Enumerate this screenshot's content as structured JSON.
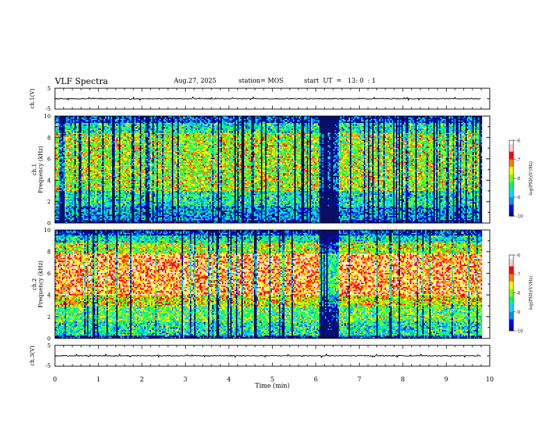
{
  "header": {
    "title": "VLF Spectra",
    "date": "Aug.27, 2025",
    "station": "station= MOS",
    "start": "start  UT  =   13: 0  : 1"
  },
  "colormap": [
    "#0a0f66",
    "#0000ff",
    "#0090ff",
    "#00e0ff",
    "#00ff66",
    "#80ff00",
    "#ffff00",
    "#ff8000",
    "#ff0000",
    "#ffd0d0",
    "#ffffff"
  ],
  "chart_data": [
    {
      "id": "ch1-voltage",
      "type": "line",
      "ylabel": "ch.1(V)",
      "yticks": [
        "5",
        "-5"
      ],
      "ylim": [
        -5,
        5
      ],
      "xlim": [
        0,
        10
      ],
      "level": 0,
      "extent_x": 9.8
    },
    {
      "id": "ch1-spectrogram",
      "type": "heatmap",
      "ylabel": "ch.1\nFrequency (kHz)",
      "ylabel_lines": [
        "ch.1",
        "Frequency (kHz)"
      ],
      "yticks": [
        "0",
        "2",
        "4",
        "6",
        "8",
        "10"
      ],
      "ylim": [
        0,
        10
      ],
      "xlim": [
        0,
        10
      ],
      "extent_x": 9.8,
      "colorbar": {
        "label": "log(PSD)(V²/Hz)",
        "ticks": [
          "-6",
          "-7",
          "-8",
          "-9",
          "-10"
        ],
        "range": [
          -10,
          -6
        ]
      },
      "profile_bands_khz": [
        [
          0.0,
          0.3,
          -9.8
        ],
        [
          0.3,
          1.6,
          -9.1
        ],
        [
          1.6,
          3.0,
          -8.6
        ],
        [
          3.0,
          8.5,
          -7.8
        ],
        [
          8.5,
          9.4,
          -8.6
        ],
        [
          9.4,
          10.0,
          -9.5
        ]
      ],
      "quiet_intervals_min": [
        [
          0.1,
          0.2
        ],
        [
          2.05,
          2.15
        ],
        [
          4.5,
          4.55
        ],
        [
          6.05,
          6.5
        ],
        [
          8.05,
          8.1
        ]
      ]
    },
    {
      "id": "ch2-spectrogram",
      "type": "heatmap",
      "ylabel": "ch.2\nFrequency (kHz)",
      "ylabel_lines": [
        "ch.2",
        "Frequency (kHz)"
      ],
      "yticks": [
        "0",
        "2",
        "4",
        "6",
        "8",
        "10"
      ],
      "ylim": [
        0,
        10
      ],
      "xlim": [
        0,
        10
      ],
      "extent_x": 9.8,
      "colorbar": {
        "label": "log(PSD)(V²/Hz)",
        "ticks": [
          "-6",
          "-7",
          "-8",
          "-9",
          "-10"
        ],
        "range": [
          -10,
          -6
        ]
      },
      "profile_bands_khz": [
        [
          0.0,
          0.3,
          -9.6
        ],
        [
          0.3,
          1.5,
          -8.6
        ],
        [
          1.5,
          3.0,
          -8.2
        ],
        [
          3.0,
          4.0,
          -7.6
        ],
        [
          4.0,
          7.8,
          -6.9
        ],
        [
          7.8,
          8.8,
          -7.8
        ],
        [
          8.8,
          9.5,
          -8.7
        ],
        [
          9.5,
          10.0,
          -9.6
        ]
      ],
      "quiet_intervals_min": [
        [
          6.05,
          6.5
        ]
      ]
    },
    {
      "id": "ch3-voltage",
      "type": "line",
      "ylabel": "ch.3(V)",
      "yticks": [
        "5",
        "-5"
      ],
      "ylim": [
        -5,
        5
      ],
      "xlim": [
        0,
        10
      ],
      "level": 0,
      "extent_x": 9.8
    }
  ],
  "xaxis": {
    "label": "Time  (min)",
    "ticks": [
      "0",
      "1",
      "2",
      "3",
      "4",
      "5",
      "6",
      "7",
      "8",
      "9",
      "10"
    ],
    "range": [
      0,
      10
    ]
  }
}
